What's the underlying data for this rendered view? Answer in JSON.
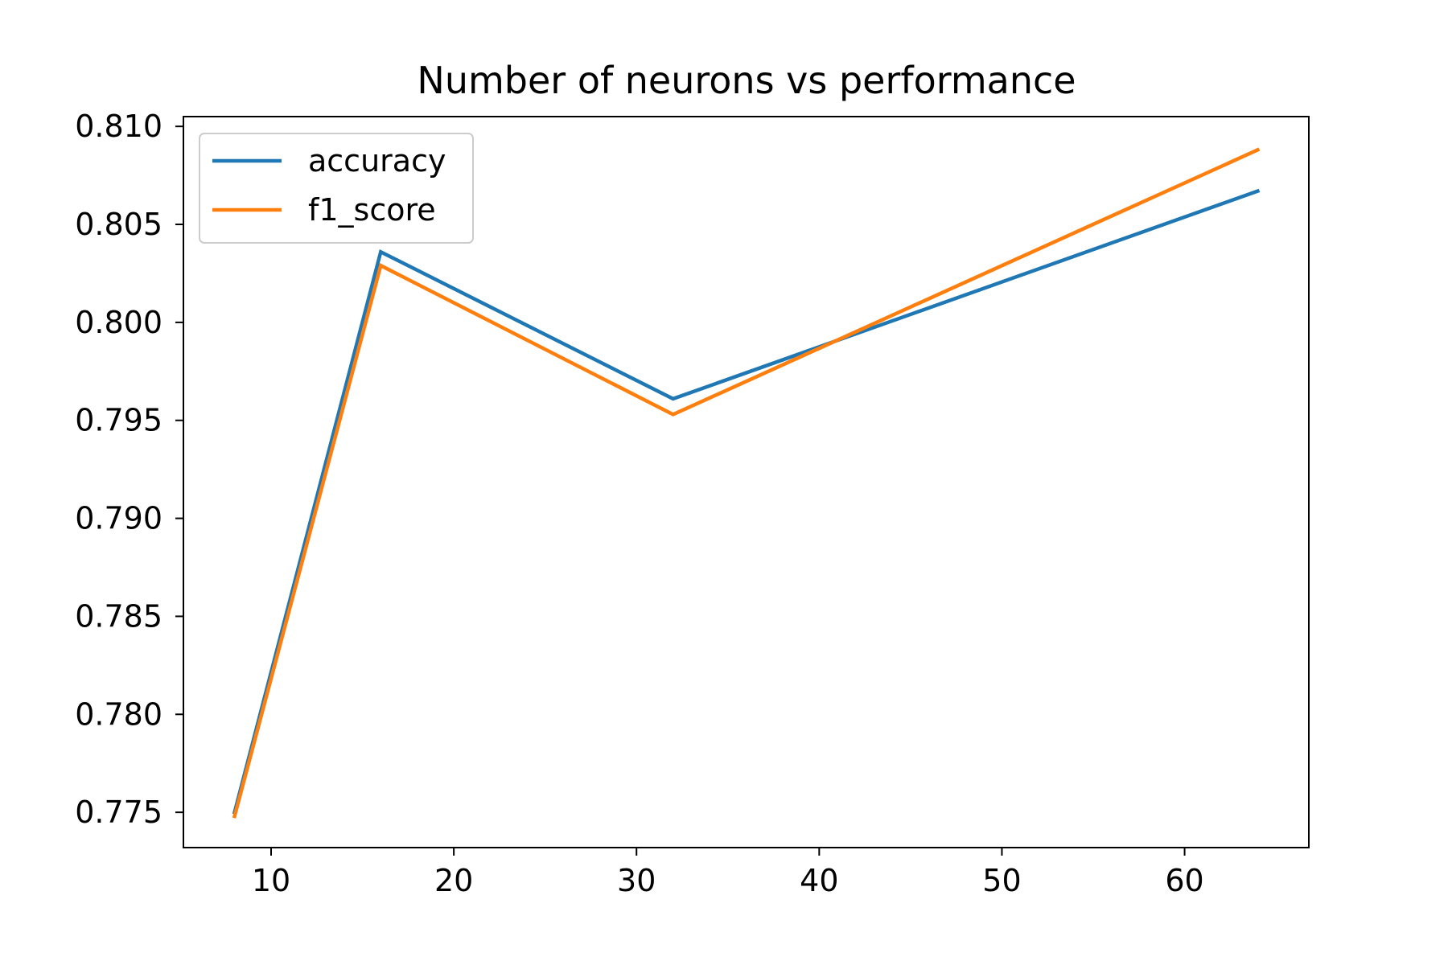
{
  "chart_data": {
    "type": "line",
    "title": "Number of neurons vs performance",
    "xlabel": "",
    "ylabel": "",
    "x": [
      8,
      16,
      32,
      64
    ],
    "xlim": [
      5.2,
      66.8
    ],
    "ylim": [
      0.7732,
      0.8105
    ],
    "xticks": [
      10,
      20,
      30,
      40,
      50,
      60
    ],
    "xtick_labels": [
      "10",
      "20",
      "30",
      "40",
      "50",
      "60"
    ],
    "yticks": [
      0.775,
      0.78,
      0.785,
      0.79,
      0.795,
      0.8,
      0.805,
      0.81
    ],
    "ytick_labels": [
      "0.775",
      "0.780",
      "0.785",
      "0.790",
      "0.795",
      "0.800",
      "0.805",
      "0.810"
    ],
    "grid": false,
    "legend_position": "upper-left",
    "series": [
      {
        "name": "accuracy",
        "color": "#1f77b4",
        "values": [
          0.775,
          0.8036,
          0.7961,
          0.8067
        ]
      },
      {
        "name": "f1_score",
        "color": "#ff7f0e",
        "values": [
          0.7748,
          0.8029,
          0.7953,
          0.8088
        ]
      }
    ]
  }
}
